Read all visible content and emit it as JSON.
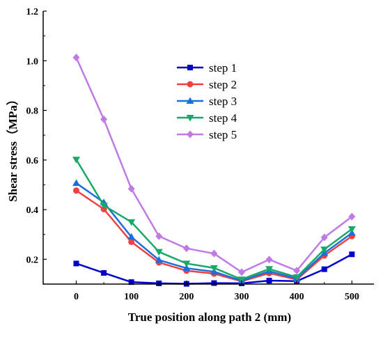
{
  "chart_data": {
    "type": "line",
    "xlabel": "True position along path 2 (mm)",
    "ylabel": "Shear stress（MPa）",
    "xlim": [
      -60,
      540
    ],
    "ylim": [
      0.1,
      1.2
    ],
    "xticks": [
      0,
      100,
      200,
      300,
      400,
      500
    ],
    "yticks": [
      0.2,
      0.4,
      0.6,
      0.8,
      1.0,
      1.2
    ],
    "xtick_labels": [
      "0",
      "100",
      "200",
      "300",
      "400",
      "500"
    ],
    "ytick_labels": [
      "0.2",
      "0.4",
      "0.6",
      "0.8",
      "1.0",
      "1.2"
    ],
    "legend_position": "upper-center",
    "x": [
      0,
      50,
      100,
      150,
      200,
      250,
      300,
      350,
      400,
      450,
      500
    ],
    "series": [
      {
        "name": "step 1",
        "color": "#0000cc",
        "marker": "square",
        "values": [
          0.183,
          0.145,
          0.108,
          0.103,
          0.101,
          0.104,
          0.103,
          0.114,
          0.112,
          0.16,
          0.22
        ]
      },
      {
        "name": "step 2",
        "color": "#f04040",
        "marker": "circle",
        "values": [
          0.477,
          0.402,
          0.27,
          0.187,
          0.154,
          0.142,
          0.111,
          0.144,
          0.118,
          0.215,
          0.293
        ]
      },
      {
        "name": "step 3",
        "color": "#1a6fdc",
        "marker": "triangle-up",
        "values": [
          0.507,
          0.429,
          0.29,
          0.197,
          0.164,
          0.15,
          0.113,
          0.152,
          0.122,
          0.225,
          0.306
        ]
      },
      {
        "name": "step 4",
        "color": "#17a86a",
        "marker": "triangle-down",
        "values": [
          0.602,
          0.417,
          0.35,
          0.23,
          0.183,
          0.165,
          0.119,
          0.161,
          0.128,
          0.24,
          0.322
        ]
      },
      {
        "name": "step 5",
        "color": "#c07ae6",
        "marker": "diamond",
        "values": [
          1.013,
          0.764,
          0.484,
          0.293,
          0.244,
          0.223,
          0.148,
          0.199,
          0.154,
          0.288,
          0.372
        ]
      }
    ]
  }
}
